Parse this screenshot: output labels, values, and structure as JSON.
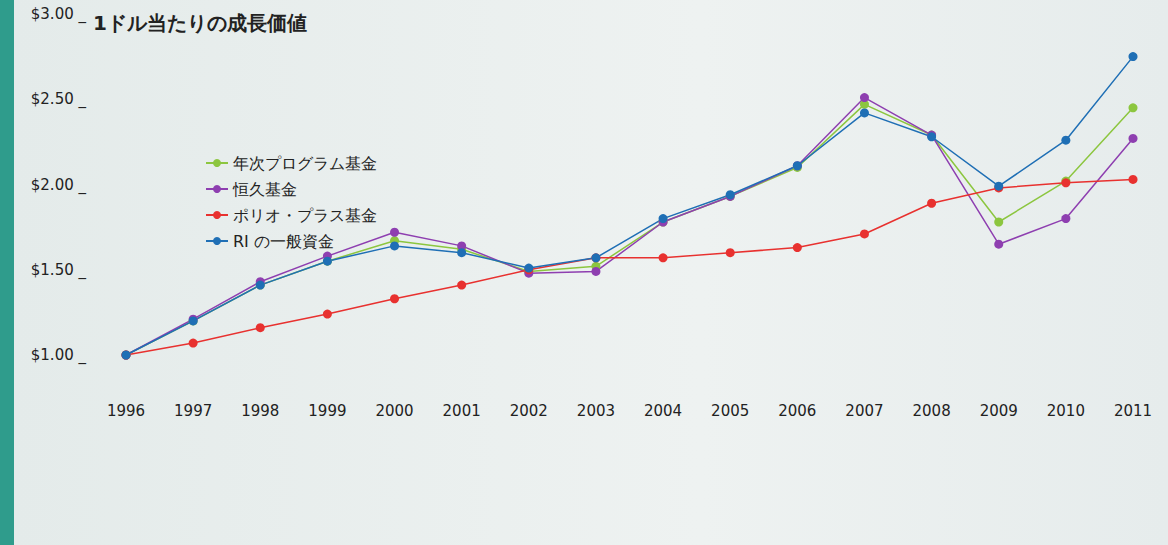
{
  "chart_data": {
    "type": "line",
    "title": "1ドル当たりの成長価値",
    "categories": [
      "1996",
      "1997",
      "1998",
      "1999",
      "2000",
      "2001",
      "2002",
      "2003",
      "2004",
      "2005",
      "2006",
      "2007",
      "2008",
      "2009",
      "2010",
      "2011"
    ],
    "series": [
      {
        "name": "年次プログラム基金",
        "color": "#8cc63f",
        "values": [
          1.0,
          1.2,
          1.41,
          1.55,
          1.67,
          1.62,
          1.49,
          1.52,
          1.78,
          1.93,
          2.1,
          2.47,
          2.29,
          1.78,
          2.02,
          2.45
        ]
      },
      {
        "name": "恒久基金",
        "color": "#8e3fb0",
        "values": [
          1.0,
          1.21,
          1.43,
          1.58,
          1.72,
          1.64,
          1.48,
          1.49,
          1.78,
          1.93,
          2.11,
          2.51,
          2.29,
          1.65,
          1.8,
          2.27
        ]
      },
      {
        "name": "ポリオ・プラス基金",
        "color": "#e8312f",
        "values": [
          1.0,
          1.07,
          1.16,
          1.24,
          1.33,
          1.41,
          1.5,
          1.57,
          1.57,
          1.6,
          1.63,
          1.71,
          1.89,
          1.98,
          2.01,
          2.03
        ]
      },
      {
        "name": "RI の一般資金",
        "color": "#1f6fb5",
        "values": [
          1.0,
          1.2,
          1.41,
          1.55,
          1.64,
          1.6,
          1.51,
          1.57,
          1.8,
          1.94,
          2.11,
          2.42,
          2.28,
          1.99,
          2.26,
          2.75
        ]
      }
    ],
    "ylim": [
      1,
      3
    ],
    "yticks": [
      {
        "value": 1,
        "label": "$1.00 _"
      },
      {
        "value": 1.5,
        "label": "$1.50 _"
      },
      {
        "value": 2,
        "label": "$2.00 _"
      },
      {
        "value": 2.5,
        "label": "$2.50 _"
      },
      {
        "value": 3,
        "label": "$3.00 _"
      }
    ],
    "grid": false,
    "legend": "top-left",
    "marker": "circle"
  }
}
